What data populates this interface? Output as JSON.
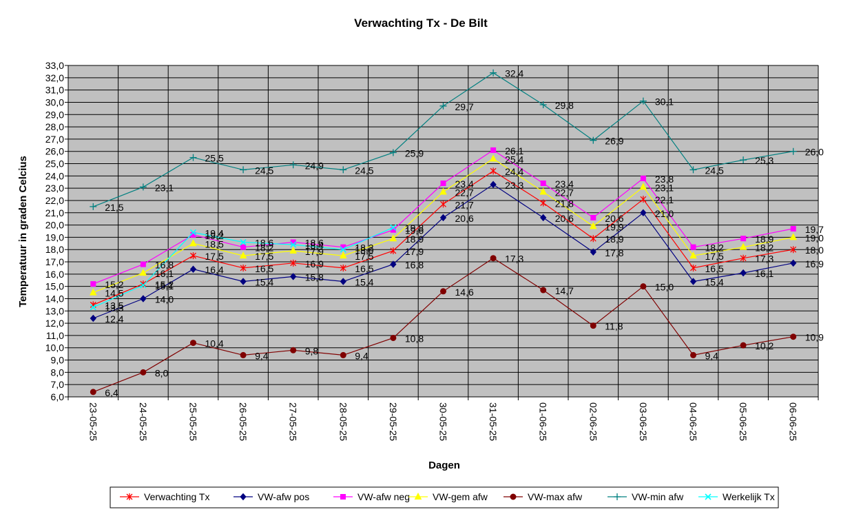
{
  "chart_data": {
    "type": "line",
    "title": "Verwachting Tx - De Bilt",
    "xlabel": "Dagen",
    "ylabel": "Temperatuur in graden Celcius",
    "ylim": [
      6.0,
      33.0
    ],
    "ystep": 1.0,
    "grid": true,
    "legend_position": "bottom",
    "plot_background": "#c0c0c0",
    "categories": [
      "23-05-25",
      "24-05-25",
      "25-05-25",
      "26-05-25",
      "27-05-25",
      "28-05-25",
      "29-05-25",
      "30-05-25",
      "31-05-25",
      "01-06-25",
      "02-06-25",
      "03-06-25",
      "04-06-25",
      "05-06-25",
      "06-06-25"
    ],
    "series": [
      {
        "name": "Verwachting Tx",
        "color": "#ff0000",
        "marker": "star",
        "values": [
          13.5,
          15.2,
          17.5,
          16.5,
          16.9,
          16.5,
          17.9,
          21.7,
          24.4,
          21.8,
          18.9,
          22.1,
          16.5,
          17.3,
          18.0
        ]
      },
      {
        "name": "VW-afw pos",
        "color": "#000080",
        "marker": "diamond",
        "values": [
          12.4,
          14.0,
          16.4,
          15.4,
          15.8,
          15.4,
          16.8,
          20.6,
          23.3,
          20.6,
          17.8,
          21.0,
          15.4,
          16.1,
          16.9
        ]
      },
      {
        "name": "VW-afw neg",
        "color": "#ff00ff",
        "marker": "square",
        "values": [
          15.2,
          16.8,
          19.2,
          18.2,
          18.6,
          18.2,
          19.6,
          23.4,
          26.1,
          23.4,
          20.6,
          23.8,
          18.2,
          18.9,
          19.7
        ]
      },
      {
        "name": "VW-gem afw",
        "color": "#ffff00",
        "marker": "triangle",
        "values": [
          14.5,
          16.1,
          18.5,
          17.5,
          17.9,
          17.5,
          18.9,
          22.7,
          25.4,
          22.7,
          19.9,
          23.1,
          17.5,
          18.2,
          19.0
        ]
      },
      {
        "name": "VW-max afw",
        "color": "#800000",
        "marker": "circle",
        "values": [
          6.4,
          8.0,
          10.4,
          9.4,
          9.8,
          9.4,
          10.8,
          14.6,
          17.3,
          14.7,
          11.8,
          15.0,
          9.4,
          10.2,
          10.9
        ]
      },
      {
        "name": "VW-min afw",
        "color": "#008080",
        "marker": "plus",
        "values": [
          21.5,
          23.1,
          25.5,
          24.5,
          24.9,
          24.5,
          25.9,
          29.7,
          32.4,
          29.8,
          26.9,
          30.1,
          24.5,
          25.3,
          26.0
        ]
      },
      {
        "name": "Werkelijk Tx",
        "color": "#00ffff",
        "marker": "x",
        "values": [
          13.3,
          15.1,
          19.4,
          18.6,
          18.4,
          18.0,
          19.8,
          null,
          null,
          null,
          null,
          null,
          null,
          null,
          null
        ]
      }
    ]
  }
}
